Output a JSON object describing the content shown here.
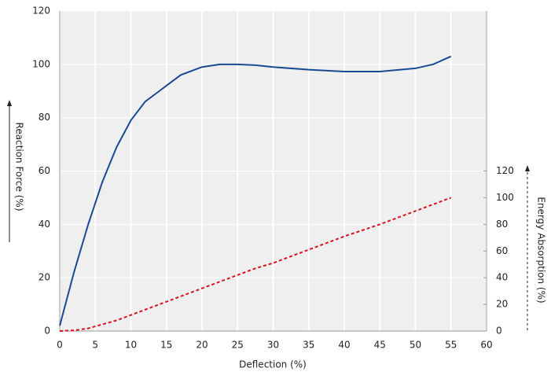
{
  "chart_data": {
    "type": "line",
    "xlabel": "Deflection (%)",
    "ylabel": "Reaction Force (%)",
    "y2label": "Energy Absorption (%)",
    "x": [
      0,
      2,
      4,
      6,
      8,
      10,
      12,
      14,
      15,
      17,
      20,
      22.5,
      25,
      27.5,
      30,
      35,
      40,
      45,
      50,
      52.5,
      55
    ],
    "series": [
      {
        "color": "#1a4a96",
        "dash": false,
        "values": [
          2,
          22,
          40,
          56,
          69,
          79,
          86,
          90,
          92,
          96,
          99,
          100,
          100,
          99.7,
          99,
          98,
          97.3,
          97.3,
          98.5,
          100,
          103
        ]
      },
      {
        "color": "#d7141e",
        "dash": true,
        "axis": "y2",
        "values": [
          0,
          0.5,
          2,
          5,
          8,
          12,
          16,
          20,
          22,
          26,
          32,
          37,
          42,
          47,
          51,
          61,
          71,
          80,
          90,
          95,
          100
        ]
      }
    ],
    "xlim": [
      0,
      60
    ],
    "xticks": [
      0,
      5,
      10,
      15,
      20,
      25,
      30,
      35,
      40,
      45,
      50,
      55,
      60
    ],
    "ylim": [
      0,
      120
    ],
    "yticks": [
      0,
      20,
      40,
      60,
      80,
      100,
      120
    ],
    "y2lim": [
      0,
      240
    ],
    "y2ticks": [
      0,
      20,
      40,
      60,
      80,
      100,
      120
    ],
    "grid": true
  }
}
